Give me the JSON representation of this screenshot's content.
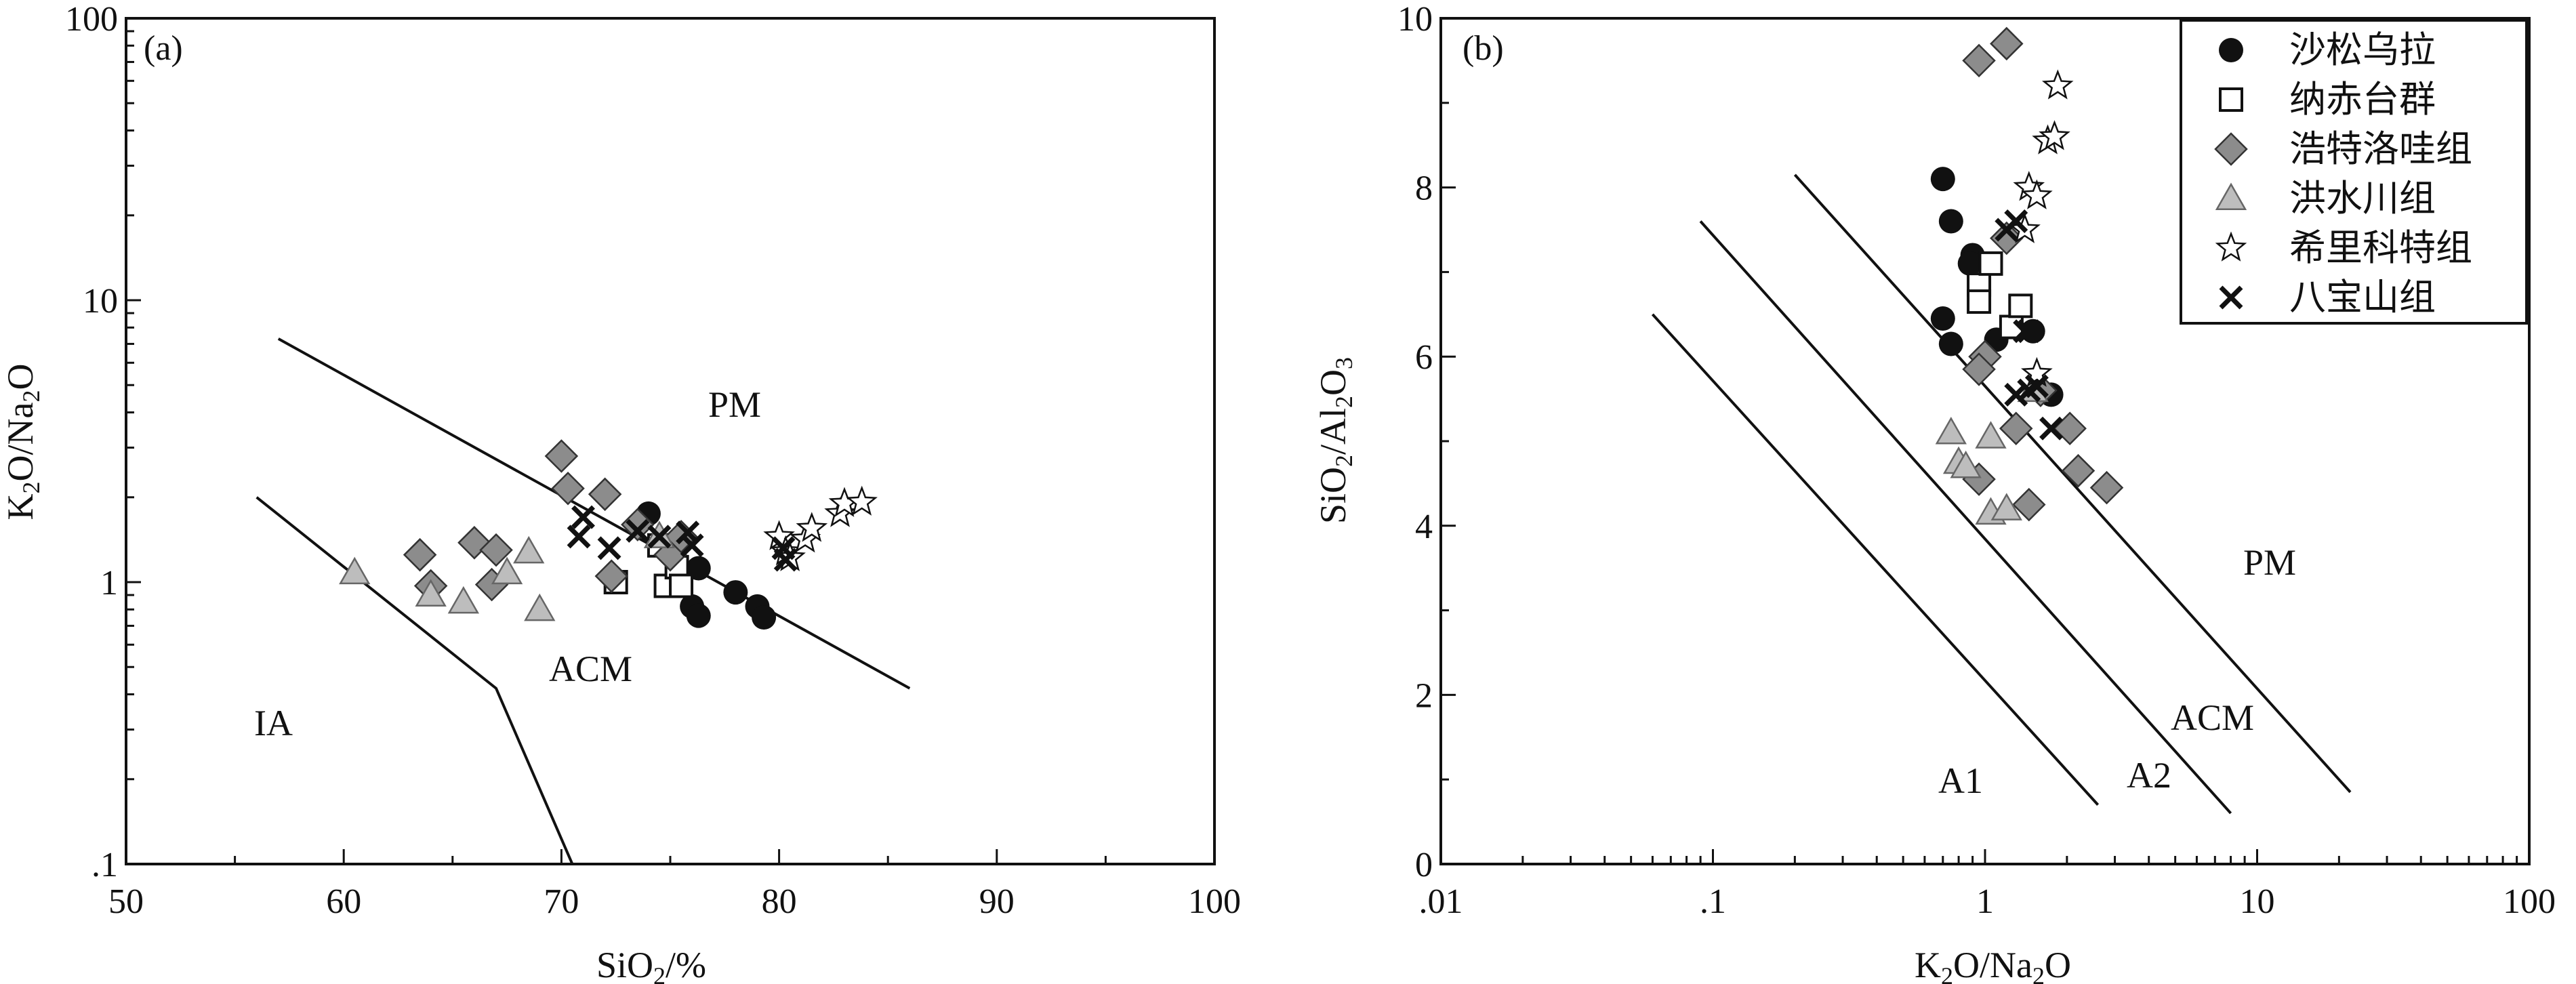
{
  "chart_data": [
    {
      "type": "scatter",
      "panel_label": "(a)",
      "xlabel": "SiO2/%",
      "ylabel": "K2O/Na2O",
      "xscale": "linear",
      "yscale": "log",
      "xlim": [
        50,
        100
      ],
      "ylim": [
        0.1,
        100
      ],
      "x_ticks": [
        "50",
        "60",
        "70",
        "80",
        "90",
        "100"
      ],
      "y_ticks": [
        ".1",
        "1",
        "10",
        "100"
      ],
      "field_labels": [
        "PM",
        "ACM",
        "IA"
      ],
      "boundaries": [
        {
          "points": [
            [
              57,
              7.3
            ],
            [
              86,
              0.42
            ]
          ]
        },
        {
          "points": [
            [
              56,
              2.0
            ],
            [
              67,
              0.42
            ],
            [
              70.5,
              0.1
            ]
          ]
        }
      ],
      "series": [
        {
          "name": "沙松乌拉",
          "values": [
            [
              74.0,
              1.75
            ],
            [
              76.3,
              1.12
            ],
            [
              76.0,
              0.82
            ],
            [
              76.3,
              0.76
            ],
            [
              78.0,
              0.92
            ],
            [
              79.0,
              0.82
            ],
            [
              79.3,
              0.75
            ]
          ]
        },
        {
          "name": "纳赤台群",
          "values": [
            [
              72.5,
              1.0
            ],
            [
              74.5,
              1.35
            ],
            [
              74.8,
              0.97
            ],
            [
              75.3,
              1.13
            ],
            [
              75.5,
              0.97
            ]
          ]
        },
        {
          "name": "浩特洛哇组",
          "values": [
            [
              63.5,
              1.25
            ],
            [
              64.0,
              0.97
            ],
            [
              66.0,
              1.38
            ],
            [
              66.8,
              0.98
            ],
            [
              67.0,
              1.3
            ],
            [
              70.0,
              2.8
            ],
            [
              70.3,
              2.15
            ],
            [
              72.0,
              2.05
            ],
            [
              72.3,
              1.05
            ],
            [
              73.5,
              1.6
            ],
            [
              75.0,
              1.25
            ],
            [
              75.5,
              1.45
            ]
          ]
        },
        {
          "name": "洪水川组",
          "values": [
            [
              60.5,
              1.08
            ],
            [
              64.0,
              0.9
            ],
            [
              65.5,
              0.85
            ],
            [
              67.5,
              1.08
            ],
            [
              68.5,
              1.28
            ],
            [
              69.0,
              0.8
            ],
            [
              74.5,
              1.45
            ]
          ]
        },
        {
          "name": "希里科特组",
          "values": [
            [
              80.0,
              1.45
            ],
            [
              80.3,
              1.28
            ],
            [
              81.2,
              1.42
            ],
            [
              81.5,
              1.55
            ],
            [
              82.8,
              1.75
            ],
            [
              83.0,
              1.9
            ],
            [
              83.8,
              1.92
            ],
            [
              80.5,
              1.22
            ]
          ]
        },
        {
          "name": "八宝山组",
          "values": [
            [
              70.8,
              1.45
            ],
            [
              71.0,
              1.7
            ],
            [
              72.2,
              1.32
            ],
            [
              73.5,
              1.52
            ],
            [
              74.5,
              1.45
            ],
            [
              75.8,
              1.5
            ],
            [
              76.0,
              1.35
            ],
            [
              80.2,
              1.32
            ],
            [
              80.3,
              1.2
            ]
          ]
        }
      ]
    },
    {
      "type": "scatter",
      "panel_label": "(b)",
      "xlabel": "K2O/Na2O",
      "ylabel": "SiO2/Al2O3",
      "xscale": "log",
      "yscale": "linear",
      "xlim": [
        0.01,
        100
      ],
      "ylim": [
        0,
        10
      ],
      "x_ticks": [
        ".01",
        ".1",
        "1",
        "10",
        "100"
      ],
      "y_ticks": [
        "0",
        "2",
        "4",
        "6",
        "8",
        "10"
      ],
      "field_labels": [
        "PM",
        "ACM",
        "A2",
        "A1"
      ],
      "boundaries": [
        {
          "points": [
            [
              0.06,
              6.5
            ],
            [
              2.6,
              0.7
            ]
          ]
        },
        {
          "points": [
            [
              0.09,
              7.6
            ],
            [
              8.0,
              0.6
            ]
          ]
        },
        {
          "points": [
            [
              0.2,
              8.15
            ],
            [
              22,
              0.85
            ]
          ]
        }
      ],
      "series": [
        {
          "name": "沙松乌拉",
          "values": [
            [
              0.7,
              8.1
            ],
            [
              0.75,
              7.6
            ],
            [
              0.9,
              7.2
            ],
            [
              0.88,
              7.1
            ],
            [
              0.7,
              6.45
            ],
            [
              0.75,
              6.15
            ],
            [
              1.1,
              6.2
            ],
            [
              1.75,
              5.55
            ],
            [
              1.5,
              6.3
            ]
          ]
        },
        {
          "name": "纳赤台群",
          "values": [
            [
              0.95,
              6.85
            ],
            [
              0.95,
              6.65
            ],
            [
              1.05,
              7.1
            ],
            [
              1.25,
              6.35
            ],
            [
              1.35,
              6.6
            ]
          ]
        },
        {
          "name": "浩特洛哇组",
          "values": [
            [
              0.95,
              9.5
            ],
            [
              1.2,
              9.7
            ],
            [
              1.2,
              7.4
            ],
            [
              1.0,
              6.0
            ],
            [
              0.95,
              5.85
            ],
            [
              1.3,
              5.15
            ],
            [
              0.95,
              4.55
            ],
            [
              1.45,
              4.25
            ],
            [
              2.05,
              5.15
            ],
            [
              2.2,
              4.65
            ],
            [
              2.8,
              4.45
            ],
            [
              1.6,
              5.6
            ]
          ]
        },
        {
          "name": "洪水川组",
          "values": [
            [
              0.75,
              5.1
            ],
            [
              0.8,
              4.75
            ],
            [
              0.85,
              4.7
            ],
            [
              1.05,
              5.05
            ],
            [
              1.05,
              4.15
            ],
            [
              1.2,
              4.2
            ],
            [
              1.5,
              5.6
            ]
          ]
        },
        {
          "name": "希里科特组",
          "values": [
            [
              1.4,
              7.5
            ],
            [
              1.45,
              8.0
            ],
            [
              1.55,
              7.9
            ],
            [
              1.7,
              8.55
            ],
            [
              1.8,
              8.6
            ],
            [
              1.85,
              9.2
            ],
            [
              1.55,
              5.8
            ]
          ]
        },
        {
          "name": "八宝山组",
          "values": [
            [
              1.2,
              7.5
            ],
            [
              1.3,
              7.6
            ],
            [
              1.3,
              5.55
            ],
            [
              1.4,
              6.3
            ],
            [
              1.45,
              5.6
            ],
            [
              1.45,
              6.3
            ],
            [
              1.55,
              5.65
            ],
            [
              1.75,
              5.15
            ]
          ]
        }
      ]
    }
  ]
}
